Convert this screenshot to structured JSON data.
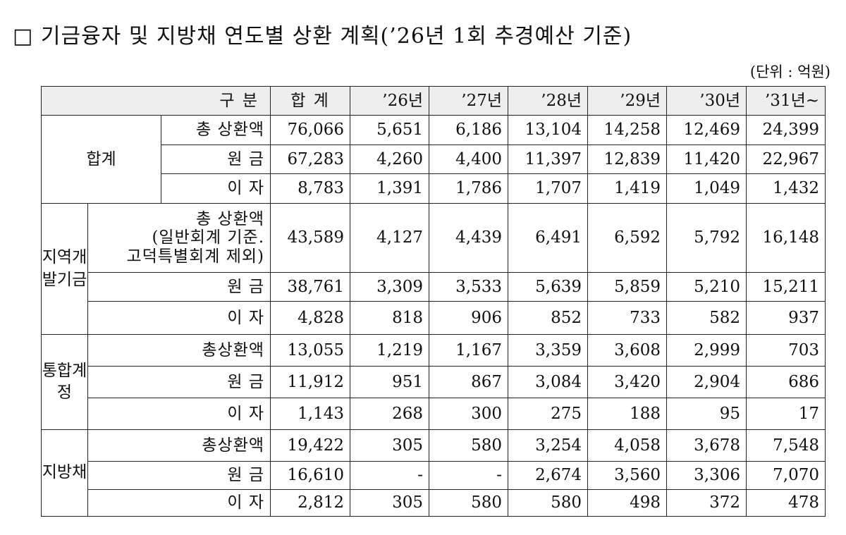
{
  "title": "□ 기금융자 및 지방채 연도별 상환 계획(’26년 1회 추경예산 기준)",
  "unit": "(단위 : 억원)",
  "table": {
    "header": [
      "구 분",
      "합 계",
      "’26년",
      "’27년",
      "’28년",
      "’29년",
      "’30년",
      "’31년~"
    ],
    "groups": [
      {
        "label": "합계",
        "rows": [
          {
            "label": "총 상환액",
            "cells": [
              "76,066",
              "5,651",
              "6,186",
              "13,104",
              "14,258",
              "12,469",
              "24,399"
            ]
          },
          {
            "label": "원 금",
            "cells": [
              "67,283",
              "4,260",
              "4,400",
              "11,397",
              "12,839",
              "11,420",
              "22,967"
            ]
          },
          {
            "label": "이 자",
            "cells": [
              "8,783",
              "1,391",
              "1,786",
              "1,707",
              "1,419",
              "1,049",
              "1,432"
            ]
          }
        ]
      },
      {
        "label": "지역개발기금",
        "rows": [
          {
            "label": "총 상환액\n(일반회계 기준.\n고덕특별회계 제외)",
            "cells": [
              "43,589",
              "4,127",
              "4,439",
              "6,491",
              "6,592",
              "5,792",
              "16,148"
            ]
          },
          {
            "label": "원 금",
            "cells": [
              "38,761",
              "3,309",
              "3,533",
              "5,639",
              "5,859",
              "5,210",
              "15,211"
            ]
          },
          {
            "label": "이 자",
            "cells": [
              "4,828",
              "818",
              "906",
              "852",
              "733",
              "582",
              "937"
            ]
          }
        ]
      },
      {
        "label": "통합계정",
        "rows": [
          {
            "label": "총상환액",
            "cells": [
              "13,055",
              "1,219",
              "1,167",
              "3,359",
              "3,608",
              "2,999",
              "703"
            ]
          },
          {
            "label": "원 금",
            "cells": [
              "11,912",
              "951",
              "867",
              "3,084",
              "3,420",
              "2,904",
              "686"
            ]
          },
          {
            "label": "이 자",
            "cells": [
              "1,143",
              "268",
              "300",
              "275",
              "188",
              "95",
              "17"
            ]
          }
        ]
      },
      {
        "label": "지방채",
        "rows": [
          {
            "label": "총상환액",
            "cells": [
              "19,422",
              "305",
              "580",
              "3,254",
              "4,058",
              "3,678",
              "7,548"
            ]
          },
          {
            "label": "원 금",
            "cells": [
              "16,610",
              "-",
              "-",
              "2,674",
              "3,560",
              "3,306",
              "7,070"
            ]
          },
          {
            "label": "이 자",
            "cells": [
              "2,812",
              "305",
              "580",
              "580",
              "498",
              "372",
              "478"
            ]
          }
        ]
      }
    ]
  }
}
